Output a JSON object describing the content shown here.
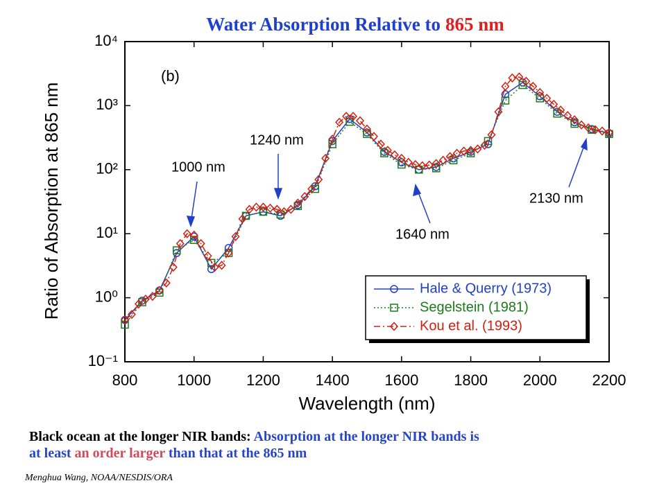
{
  "chart_data": {
    "type": "line",
    "title_main": "Water Absorption Relative to",
    "title_highlight": "865 nm",
    "xlabel": "Wavelength (nm)",
    "ylabel": "Ratio of Absorption at 865 nm",
    "panel_label": "(b)",
    "annotations": [
      "1000 nm",
      "1240 nm",
      "1640 nm",
      "2130 nm"
    ],
    "xlim": [
      800,
      2200
    ],
    "xticks": [
      800,
      1000,
      1200,
      1400,
      1600,
      1800,
      2000,
      2200
    ],
    "ylim": [
      0.1,
      10000
    ],
    "log_y": true,
    "yticks": [
      {
        "value": 0.1,
        "label": "10⁻¹"
      },
      {
        "value": 1,
        "label": "10⁰"
      },
      {
        "value": 10,
        "label": "10¹"
      },
      {
        "value": 100,
        "label": "10²"
      },
      {
        "value": 1000,
        "label": "10³"
      },
      {
        "value": 10000,
        "label": "10⁴"
      }
    ],
    "legend": "lower right",
    "series": [
      {
        "name": "Hale & Querry (1973)",
        "color": "#2040c8",
        "marker": "circle",
        "dash": "solid",
        "x": [
          800,
          850,
          900,
          950,
          1000,
          1050,
          1100,
          1150,
          1200,
          1250,
          1300,
          1350,
          1400,
          1450,
          1500,
          1550,
          1600,
          1650,
          1700,
          1750,
          1800,
          1850,
          1900,
          1950,
          2000,
          2050,
          2100,
          2150,
          2200
        ],
        "values": [
          0.45,
          0.9,
          1.3,
          5,
          9,
          2.8,
          6,
          19,
          22,
          19,
          28,
          55,
          280,
          620,
          380,
          190,
          130,
          100,
          110,
          150,
          190,
          250,
          1500,
          2300,
          1400,
          800,
          550,
          430,
          370
        ]
      },
      {
        "name": "Segelstein (1981)",
        "color": "#1a7a1a",
        "marker": "square",
        "dash": "dotted",
        "x": [
          800,
          850,
          900,
          950,
          1000,
          1050,
          1100,
          1150,
          1200,
          1250,
          1300,
          1350,
          1400,
          1450,
          1500,
          1550,
          1600,
          1650,
          1700,
          1750,
          1800,
          1850,
          1900,
          1950,
          2000,
          2050,
          2100,
          2150,
          2200
        ],
        "values": [
          0.38,
          0.85,
          1.2,
          5.5,
          8,
          3.5,
          5,
          19,
          22,
          20,
          27,
          50,
          250,
          560,
          360,
          180,
          120,
          100,
          105,
          140,
          180,
          280,
          1200,
          2100,
          1300,
          750,
          520,
          420,
          360
        ]
      },
      {
        "name": "Kou et al. (1993)",
        "color": "#d02010",
        "marker": "diamond",
        "dash": "dashdot",
        "x": [
          800,
          820,
          840,
          860,
          880,
          900,
          920,
          940,
          960,
          980,
          1000,
          1020,
          1040,
          1060,
          1080,
          1100,
          1120,
          1140,
          1160,
          1180,
          1200,
          1220,
          1240,
          1260,
          1280,
          1300,
          1320,
          1340,
          1360,
          1380,
          1400,
          1420,
          1440,
          1460,
          1480,
          1500,
          1520,
          1540,
          1560,
          1580,
          1600,
          1620,
          1640,
          1660,
          1680,
          1700,
          1720,
          1740,
          1760,
          1780,
          1800,
          1820,
          1840,
          1860,
          1880,
          1900,
          1920,
          1940,
          1960,
          1980,
          2000,
          2020,
          2040,
          2060,
          2080,
          2100,
          2120,
          2140,
          2160,
          2180,
          2200
        ],
        "values": [
          0.45,
          0.55,
          0.8,
          0.95,
          1.05,
          1.3,
          1.7,
          3,
          7,
          10,
          9.5,
          7,
          4.5,
          3,
          3.2,
          5,
          9,
          17,
          24,
          26,
          26,
          25,
          24,
          22,
          24,
          30,
          38,
          50,
          70,
          150,
          300,
          550,
          680,
          680,
          580,
          430,
          330,
          250,
          200,
          170,
          150,
          130,
          120,
          115,
          118,
          125,
          140,
          160,
          180,
          195,
          200,
          210,
          240,
          350,
          800,
          2000,
          2700,
          2800,
          2400,
          2000,
          1600,
          1300,
          1050,
          850,
          700,
          600,
          500,
          450,
          420,
          400,
          380
        ]
      }
    ]
  },
  "caption": [
    "Black ocean at the longer NIR bands: ",
    "Absorption at the longer NIR bands is",
    "at least ",
    "an order larger",
    " than that at the 865 nm"
  ],
  "credit": "Menghua Wang, NOAA/NESDIS/ORA"
}
